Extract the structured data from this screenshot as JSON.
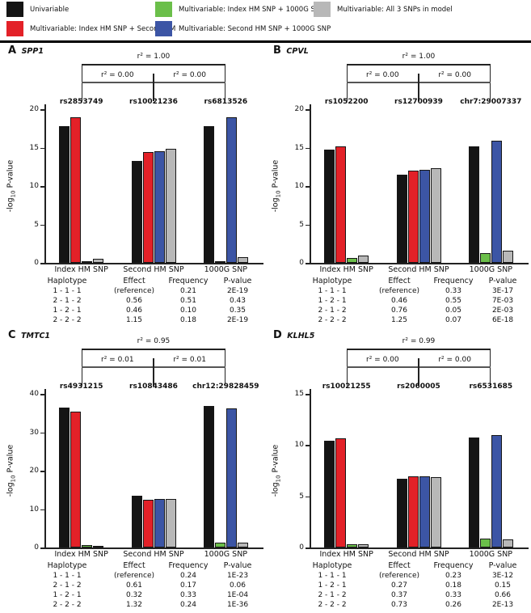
{
  "figure": {
    "legend": [
      {
        "name": "univariable",
        "label": "Univariable",
        "color": "#141414"
      },
      {
        "name": "index-plus-second",
        "label": "Multivariable: Index HM SNP + Second HM",
        "color": "#e32128"
      },
      {
        "name": "index-plus-1000g",
        "label": "Multivariable: Index HM SNP + 1000G SNP",
        "color": "#6bbf4a"
      },
      {
        "name": "second-plus-1000g",
        "label": "Multivariable: Second HM SNP + 1000G SNP",
        "color": "#3c55a5"
      },
      {
        "name": "all-3-snps",
        "label": "Multivariable: All 3 SNPs in model",
        "color": "#b8b8b8"
      }
    ],
    "ylabel": {
      "prefix": "-log",
      "sub": "10",
      "suffix": " P-value"
    }
  },
  "chart_data": [
    {
      "type": "bar",
      "panel": "A",
      "gene": "SPP1",
      "r2": {
        "top": "r² = 1.00",
        "left": "r² = 0.00",
        "right": "r² = 0.00"
      },
      "snps": [
        "rs2853749",
        "rs10021236",
        "rs6813526"
      ],
      "ylim": [
        0,
        20
      ],
      "yticks": [
        0,
        5,
        10,
        15,
        20
      ],
      "categories": [
        "Index HM SNP",
        "Second HM SNP",
        "1000G SNP"
      ],
      "series": [
        {
          "name": "Univariable",
          "color": "#141414",
          "values": [
            17.8,
            13.3,
            17.8
          ]
        },
        {
          "name": "Multivariable: Index HM SNP + Second HM",
          "color": "#e32128",
          "values": [
            18.9,
            14.4,
            null
          ]
        },
        {
          "name": "Multivariable: Index HM SNP + 1000G SNP",
          "color": "#6bbf4a",
          "values": [
            0.15,
            null,
            0.25
          ]
        },
        {
          "name": "Multivariable: Second HM SNP + 1000G SNP",
          "color": "#3c55a5",
          "values": [
            null,
            14.5,
            19.0
          ]
        },
        {
          "name": "Multivariable: All 3 SNPs in model",
          "color": "#b8b8b8",
          "values": [
            0.5,
            14.8,
            0.75
          ]
        }
      ],
      "table": {
        "headers": [
          "Haplotype",
          "Effect",
          "Frequency",
          "P-value"
        ],
        "rows": [
          [
            "1 - 1 - 1",
            "(reference)",
            "0.21",
            "2E-19"
          ],
          [
            "2 - 1 - 2",
            "0.56",
            "0.51",
            "0.43"
          ],
          [
            "1 - 2 - 1",
            "0.46",
            "0.10",
            "0.35"
          ],
          [
            "2 - 2 - 2",
            "1.15",
            "0.18",
            "2E-19"
          ]
        ]
      }
    },
    {
      "type": "bar",
      "panel": "B",
      "gene": "CPVL",
      "r2": {
        "top": "r² = 1.00",
        "left": "r² = 0.00",
        "right": "r² = 0.00"
      },
      "snps": [
        "rs1052200",
        "rs12700939",
        "chr7:29007337"
      ],
      "ylim": [
        0,
        20
      ],
      "yticks": [
        0,
        5,
        10,
        15,
        20
      ],
      "categories": [
        "Index HM SNP",
        "Second HM SNP",
        "1000G SNP"
      ],
      "series": [
        {
          "name": "Univariable",
          "color": "#141414",
          "values": [
            14.7,
            11.5,
            15.2
          ]
        },
        {
          "name": "Multivariable: Index HM SNP + Second HM",
          "color": "#e32128",
          "values": [
            15.2,
            12.0,
            null
          ]
        },
        {
          "name": "Multivariable: Index HM SNP + 1000G SNP",
          "color": "#6bbf4a",
          "values": [
            0.65,
            null,
            1.3
          ]
        },
        {
          "name": "Multivariable: Second HM SNP + 1000G SNP",
          "color": "#3c55a5",
          "values": [
            null,
            12.1,
            15.9
          ]
        },
        {
          "name": "Multivariable: All 3 SNPs in model",
          "color": "#b8b8b8",
          "values": [
            0.9,
            12.3,
            1.6
          ]
        }
      ],
      "table": {
        "headers": [
          "Haplotype",
          "Effect",
          "Frequency",
          "P-value"
        ],
        "rows": [
          [
            "1 - 1 - 1",
            "(reference)",
            "0.33",
            "3E-17"
          ],
          [
            "1 - 2 - 1",
            "0.46",
            "0.55",
            "7E-03"
          ],
          [
            "2 - 1 - 2",
            "0.76",
            "0.05",
            "2E-03"
          ],
          [
            "2 - 2 - 2",
            "1.25",
            "0.07",
            "6E-18"
          ]
        ]
      }
    },
    {
      "type": "bar",
      "panel": "C",
      "gene": "TMTC1",
      "r2": {
        "top": "r² = 0.95",
        "left": "r² = 0.01",
        "right": "r² = 0.01"
      },
      "snps": [
        "rs4931215",
        "rs10843486",
        "chr12:29828459"
      ],
      "ylim": [
        0,
        40
      ],
      "yticks": [
        0,
        10,
        20,
        30,
        40
      ],
      "categories": [
        "Index HM SNP",
        "Second HM SNP",
        "1000G SNP"
      ],
      "series": [
        {
          "name": "Univariable",
          "color": "#141414",
          "values": [
            36.5,
            13.5,
            36.9
          ]
        },
        {
          "name": "Multivariable: Index HM SNP + Second HM",
          "color": "#e32128",
          "values": [
            35.3,
            12.4,
            null
          ]
        },
        {
          "name": "Multivariable: Index HM SNP + 1000G SNP",
          "color": "#6bbf4a",
          "values": [
            0.7,
            null,
            1.2
          ]
        },
        {
          "name": "Multivariable: Second HM SNP + 1000G SNP",
          "color": "#3c55a5",
          "values": [
            null,
            12.7,
            36.2
          ]
        },
        {
          "name": "Multivariable: All 3 SNPs in model",
          "color": "#b8b8b8",
          "values": [
            0.5,
            12.6,
            1.3
          ]
        }
      ],
      "table": {
        "headers": [
          "Haplotype",
          "Effect",
          "Frequency",
          "P-value"
        ],
        "rows": [
          [
            "1 - 1 - 1",
            "(reference)",
            "0.24",
            "1E-23"
          ],
          [
            "2 - 1 - 2",
            "0.61",
            "0.17",
            "0.06"
          ],
          [
            "1 - 2 - 1",
            "0.32",
            "0.33",
            "1E-04"
          ],
          [
            "2 - 2 - 2",
            "1.32",
            "0.24",
            "1E-36"
          ]
        ]
      }
    },
    {
      "type": "bar",
      "panel": "D",
      "gene": "KLHL5",
      "r2": {
        "top": "r² = 0.99",
        "left": "r² = 0.00",
        "right": "r² = 0.00"
      },
      "snps": [
        "rs10021255",
        "rs2060005",
        "rs6531685"
      ],
      "ylim": [
        0,
        15
      ],
      "yticks": [
        0,
        5,
        10,
        15
      ],
      "categories": [
        "Index HM SNP",
        "Second HM SNP",
        "1000G SNP"
      ],
      "series": [
        {
          "name": "Univariable",
          "color": "#141414",
          "values": [
            10.4,
            6.7,
            10.75
          ]
        },
        {
          "name": "Multivariable: Index HM SNP + Second HM",
          "color": "#e32128",
          "values": [
            10.65,
            6.95,
            null
          ]
        },
        {
          "name": "Multivariable: Index HM SNP + 1000G SNP",
          "color": "#6bbf4a",
          "values": [
            0.35,
            null,
            0.9
          ]
        },
        {
          "name": "Multivariable: Second HM SNP + 1000G SNP",
          "color": "#3c55a5",
          "values": [
            null,
            6.95,
            11.0
          ]
        },
        {
          "name": "Multivariable: All 3 SNPs in model",
          "color": "#b8b8b8",
          "values": [
            0.3,
            6.85,
            0.8
          ]
        }
      ],
      "table": {
        "headers": [
          "Haplotype",
          "Effect",
          "Frequency",
          "P-value"
        ],
        "rows": [
          [
            "1 - 1 - 1",
            "(reference)",
            "0.23",
            "3E-12"
          ],
          [
            "1 - 2 - 1",
            "0.27",
            "0.18",
            "0.15"
          ],
          [
            "2 - 1 - 2",
            "0.37",
            "0.33",
            "0.66"
          ],
          [
            "2 - 2 - 2",
            "0.73",
            "0.26",
            "2E-13"
          ]
        ]
      }
    }
  ]
}
